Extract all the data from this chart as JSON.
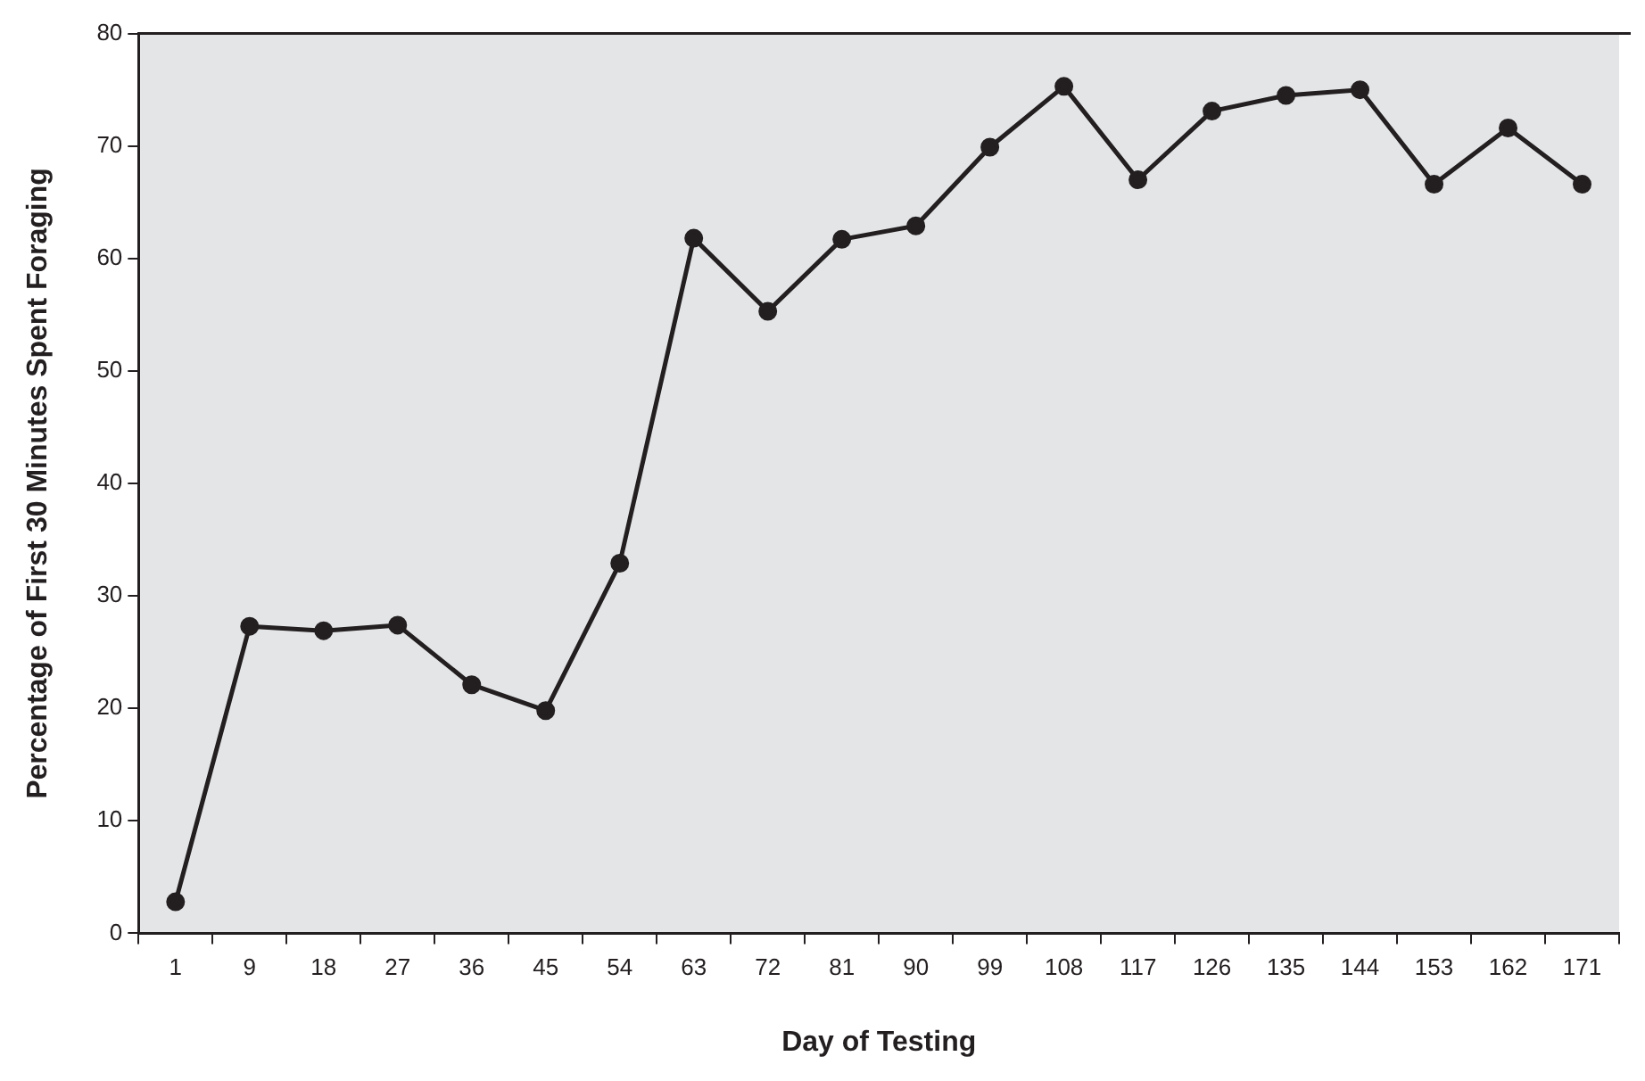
{
  "chart_data": {
    "type": "line",
    "xlabel": "Day of Testing",
    "ylabel": "Percentage of First 30 Minutes Spent Foraging",
    "categories": [
      "1",
      "9",
      "18",
      "27",
      "36",
      "45",
      "54",
      "63",
      "72",
      "81",
      "90",
      "99",
      "108",
      "117",
      "126",
      "135",
      "144",
      "153",
      "162",
      "171"
    ],
    "series": [
      {
        "color": "#231f20",
        "values": [
          2.8,
          27.3,
          26.9,
          27.4,
          22.1,
          19.8,
          32.9,
          61.8,
          55.3,
          61.7,
          62.9,
          69.9,
          75.3,
          67.0,
          73.1,
          74.5,
          75.0,
          66.6,
          71.6,
          66.6
        ]
      }
    ],
    "ylim": [
      0,
      80
    ],
    "yticks": [
      0,
      10,
      20,
      30,
      40,
      50,
      60,
      70,
      80
    ],
    "grid": false,
    "legend": false,
    "marker": "circle",
    "line_style": "solid"
  }
}
